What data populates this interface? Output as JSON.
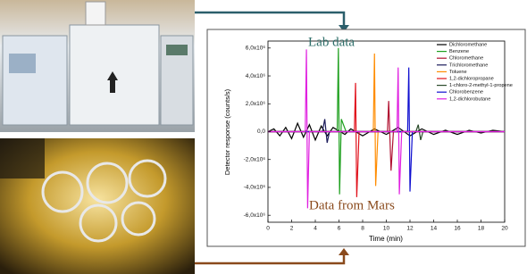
{
  "chart_data": {
    "type": "line",
    "x_label": "Time (min)",
    "y_label": "Detector response (counts/s)",
    "annotations": [
      {
        "text": "Lab data",
        "color": "#2f6f6a"
      },
      {
        "text": "Data from Mars",
        "color": "#8a4a1c"
      }
    ],
    "xlim": [
      0,
      20
    ],
    "xticks": [
      0,
      2,
      4,
      6,
      8,
      10,
      12,
      14,
      16,
      18,
      20
    ],
    "ylim": [
      -6500000,
      6500000
    ],
    "yticks": [
      {
        "value": 6000000,
        "label": "6,0x10⁶"
      },
      {
        "value": 4000000,
        "label": "4,0x10⁶"
      },
      {
        "value": 2000000,
        "label": "2,0x10⁶"
      },
      {
        "value": 0,
        "label": "0,0"
      },
      {
        "value": -2000000,
        "label": "-2,0x10⁶"
      },
      {
        "value": -4000000,
        "label": "-4,0x10⁶"
      },
      {
        "value": -6000000,
        "label": "-6,0x10⁶"
      }
    ],
    "series": [
      {
        "name": "Dichloromethane",
        "color": "#000000",
        "x": [
          0,
          0.5,
          1,
          1.5,
          2,
          2.5,
          3,
          3.5,
          4,
          4.5,
          5,
          5.5,
          6.5,
          7,
          8,
          9,
          10,
          11,
          12,
          13,
          14,
          15,
          16,
          17,
          18,
          19,
          20
        ],
        "values": [
          0,
          200000,
          -300000,
          300000,
          -500000,
          600000,
          -400000,
          500000,
          -600000,
          400000,
          -300000,
          300000,
          -200000,
          200000,
          -300000,
          200000,
          -200000,
          300000,
          -300000,
          200000,
          -200000,
          100000,
          -200000,
          100000,
          -100000,
          100000,
          0
        ]
      },
      {
        "name": "Benzene",
        "color": "#1fa01f",
        "x": [
          0,
          5.85,
          5.95,
          6.05,
          6.2,
          6.6,
          20
        ],
        "values": [
          0,
          0,
          6000000,
          -4500000,
          900000,
          0,
          0
        ]
      },
      {
        "name": "Chloromethane",
        "color": "#b01030",
        "x": [
          0,
          10.1,
          10.2,
          10.4,
          10.6,
          20
        ],
        "values": [
          0,
          0,
          2200000,
          -2800000,
          0,
          0
        ]
      },
      {
        "name": "Trichloromethane",
        "color": "#1a1a5a",
        "x": [
          0,
          4.6,
          4.8,
          5.0,
          5.2,
          20
        ],
        "values": [
          0,
          0,
          900000,
          -800000,
          0,
          0
        ]
      },
      {
        "name": "Toluene",
        "color": "#ff8c00",
        "x": [
          0,
          8.9,
          9.0,
          9.1,
          9.3,
          20
        ],
        "values": [
          0,
          0,
          5600000,
          -3900000,
          0,
          0
        ]
      },
      {
        "name": "1,2-dichloropropane",
        "color": "#e0101a",
        "x": [
          0,
          7.3,
          7.4,
          7.5,
          7.7,
          20
        ],
        "values": [
          0,
          0,
          3500000,
          -4700000,
          0,
          0
        ]
      },
      {
        "name": "1-chloro-2-methyl-1-propene",
        "color": "#2a4a2a",
        "x": [
          0,
          12.5,
          12.7,
          12.9,
          13.1,
          20
        ],
        "values": [
          0,
          0,
          500000,
          -600000,
          0,
          0
        ]
      },
      {
        "name": "Chlorobenzene",
        "color": "#1010d0",
        "x": [
          0,
          11.8,
          11.9,
          12.0,
          12.2,
          20
        ],
        "values": [
          0,
          0,
          4600000,
          -4300000,
          0,
          0
        ]
      },
      {
        "name": "1,2-dichlorobutane",
        "color": "#e020e0",
        "x": [
          0,
          3.15,
          3.25,
          3.35,
          3.5,
          10.9,
          11.0,
          11.1,
          11.3,
          20
        ],
        "values": [
          0,
          0,
          5900000,
          -5500000,
          0,
          0,
          4600000,
          -4500000,
          0,
          0
        ]
      }
    ]
  }
}
